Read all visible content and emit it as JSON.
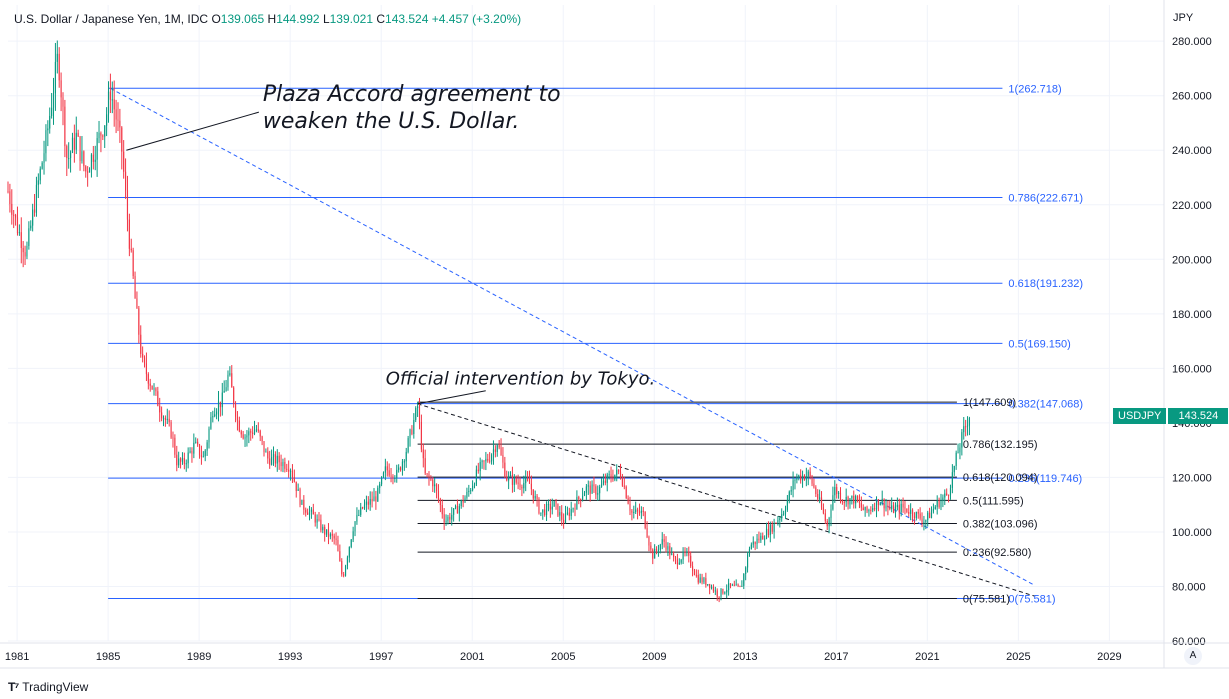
{
  "header": {
    "symbol": "U.S. Dollar / Japanese Yen, 1M, IDC",
    "open_label": "O",
    "open": "139.065",
    "high_label": "H",
    "high": "144.992",
    "low_label": "L",
    "low": "139.021",
    "close_label": "C",
    "close": "143.524",
    "change": "+4.457 (+3.20%)"
  },
  "price_unit": "JPY",
  "ticker_label": "USDJPY",
  "ticker_price": "143.524",
  "scale_button": "A",
  "brand": "TradingView",
  "colors": {
    "up": "#089981",
    "down": "#f23645",
    "fib_blue": "#2962ff",
    "fib_black": "#131722",
    "grid": "#f0f3fa"
  },
  "chart_data": {
    "type": "candlestick",
    "interval": "1M",
    "y_axis": {
      "ticks": [
        "280.000",
        "260.000",
        "240.000",
        "220.000",
        "200.000",
        "180.000",
        "160.000",
        "140.000",
        "120.000",
        "100.000",
        "80.000",
        "60.000"
      ],
      "range": [
        60,
        283
      ]
    },
    "x_axis": {
      "ticks": [
        "1981",
        "1985",
        "1989",
        "1993",
        "1997",
        "2001",
        "2005",
        "2009",
        "2013",
        "2017",
        "2021",
        "2025",
        "2029"
      ],
      "range": [
        1980.6,
        2031.4
      ]
    },
    "price_path": [
      [
        1980.6,
        225
      ],
      [
        1981.0,
        212
      ],
      [
        1981.4,
        202
      ],
      [
        1981.8,
        222
      ],
      [
        1982.3,
        245
      ],
      [
        1982.8,
        275
      ],
      [
        1983.2,
        236
      ],
      [
        1983.6,
        245
      ],
      [
        1984.0,
        232
      ],
      [
        1984.5,
        242
      ],
      [
        1984.9,
        252
      ],
      [
        1985.1,
        262
      ],
      [
        1985.4,
        250
      ],
      [
        1985.6,
        240
      ],
      [
        1985.9,
        210
      ],
      [
        1986.2,
        184
      ],
      [
        1986.5,
        162
      ],
      [
        1986.9,
        154
      ],
      [
        1987.3,
        145
      ],
      [
        1987.8,
        136
      ],
      [
        1988.0,
        126
      ],
      [
        1988.3,
        125
      ],
      [
        1988.8,
        132
      ],
      [
        1989.2,
        127
      ],
      [
        1989.6,
        145
      ],
      [
        1990.0,
        148
      ],
      [
        1990.3,
        158
      ],
      [
        1990.7,
        140
      ],
      [
        1991.0,
        135
      ],
      [
        1991.5,
        138
      ],
      [
        1992.0,
        127
      ],
      [
        1992.5,
        126
      ],
      [
        1993.0,
        124
      ],
      [
        1993.5,
        110
      ],
      [
        1994.0,
        106
      ],
      [
        1994.5,
        100
      ],
      [
        1995.0,
        97
      ],
      [
        1995.3,
        83
      ],
      [
        1995.8,
        103
      ],
      [
        1996.2,
        109
      ],
      [
        1996.8,
        113
      ],
      [
        1997.2,
        123
      ],
      [
        1997.7,
        121
      ],
      [
        1998.1,
        130
      ],
      [
        1998.6,
        146
      ],
      [
        1998.9,
        121
      ],
      [
        1999.3,
        118
      ],
      [
        1999.8,
        104
      ],
      [
        2000.3,
        108
      ],
      [
        2000.8,
        114
      ],
      [
        2001.3,
        123
      ],
      [
        2001.8,
        128
      ],
      [
        2002.1,
        133
      ],
      [
        2002.5,
        120
      ],
      [
        2003.0,
        118
      ],
      [
        2003.5,
        118
      ],
      [
        2004.0,
        107
      ],
      [
        2004.6,
        110
      ],
      [
        2005.0,
        104
      ],
      [
        2005.5,
        110
      ],
      [
        2006.0,
        116
      ],
      [
        2006.5,
        115
      ],
      [
        2007.0,
        120
      ],
      [
        2007.5,
        122
      ],
      [
        2008.0,
        107
      ],
      [
        2008.5,
        107
      ],
      [
        2008.9,
        91
      ],
      [
        2009.4,
        97
      ],
      [
        2009.9,
        89
      ],
      [
        2010.4,
        92
      ],
      [
        2010.9,
        83
      ],
      [
        2011.4,
        81
      ],
      [
        2011.8,
        77
      ],
      [
        2012.3,
        80
      ],
      [
        2012.8,
        79
      ],
      [
        2013.2,
        95
      ],
      [
        2013.7,
        98
      ],
      [
        2014.2,
        102
      ],
      [
        2014.7,
        108
      ],
      [
        2015.2,
        120
      ],
      [
        2015.8,
        121
      ],
      [
        2016.3,
        110
      ],
      [
        2016.6,
        102
      ],
      [
        2016.9,
        116
      ],
      [
        2017.3,
        112
      ],
      [
        2017.8,
        112
      ],
      [
        2018.3,
        107
      ],
      [
        2018.9,
        112
      ],
      [
        2019.4,
        108
      ],
      [
        2019.9,
        109
      ],
      [
        2020.4,
        107
      ],
      [
        2020.9,
        104
      ],
      [
        2021.4,
        110
      ],
      [
        2021.9,
        114
      ],
      [
        2022.3,
        128
      ],
      [
        2022.6,
        137
      ],
      [
        2022.9,
        144
      ]
    ],
    "lines": [
      {
        "name": "trendline-1985",
        "style": "dashed",
        "color": "#2962ff",
        "from": [
          1985.1,
          262.7
        ],
        "to": [
          2025.7,
          80.5
        ]
      },
      {
        "name": "trendline-1998",
        "style": "dashed",
        "color": "#131722",
        "from": [
          1998.6,
          147.0
        ],
        "to": [
          2025.7,
          76.5
        ]
      }
    ],
    "fib_blue": {
      "x_start": 1985.0,
      "x_end": 2024.3,
      "levels": [
        {
          "ratio": "1",
          "value": 262.718,
          "label": "1(262.718)"
        },
        {
          "ratio": "0.786",
          "value": 222.671,
          "label": "0.786(222.671)"
        },
        {
          "ratio": "0.618",
          "value": 191.232,
          "label": "0.618(191.232)"
        },
        {
          "ratio": "0.5",
          "value": 169.15,
          "label": "0.5(169.150)"
        },
        {
          "ratio": "0.382",
          "value": 147.068,
          "label": "0.382(147.068)"
        },
        {
          "ratio": "0.236",
          "value": 119.746,
          "label": "0.236(119.746)"
        },
        {
          "ratio": "0",
          "value": 75.581,
          "label": "0(75.581)"
        }
      ]
    },
    "fib_black": {
      "x_start": 1998.6,
      "x_end": 2022.3,
      "levels": [
        {
          "ratio": "1",
          "value": 147.609,
          "label": "1(147.609)"
        },
        {
          "ratio": "0.786",
          "value": 132.195,
          "label": "0.786(132.195)"
        },
        {
          "ratio": "0.618",
          "value": 120.094,
          "label": "0.618(120.094)"
        },
        {
          "ratio": "0.5",
          "value": 111.595,
          "label": "0.5(111.595)"
        },
        {
          "ratio": "0.382",
          "value": 103.096,
          "label": "0.382(103.096)"
        },
        {
          "ratio": "0.236",
          "value": 92.58,
          "label": "0.236(92.580)"
        },
        {
          "ratio": "0",
          "value": 75.581,
          "label": "0(75.581)"
        }
      ]
    },
    "annotations": [
      {
        "name": "plaza-accord",
        "line1": "Plaza Accord agreement to",
        "line2": "weaken the U.S. Dollar.",
        "anchor": [
          1985.8,
          240
        ],
        "text_at": [
          1991.8,
          258
        ]
      },
      {
        "name": "official-intervention",
        "line1": "Official intervention by Tokyo.",
        "line2": "",
        "anchor": [
          1998.6,
          147
        ],
        "text_at": [
          1997.2,
          154
        ]
      }
    ]
  }
}
